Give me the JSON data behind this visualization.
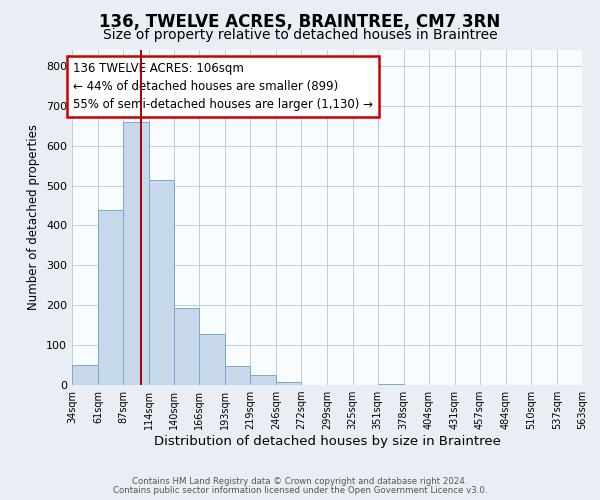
{
  "title": "136, TWELVE ACRES, BRAINTREE, CM7 3RN",
  "subtitle": "Size of property relative to detached houses in Braintree",
  "xlabel": "Distribution of detached houses by size in Braintree",
  "ylabel": "Number of detached properties",
  "bin_edges": [
    34,
    61,
    87,
    114,
    140,
    166,
    193,
    219,
    246,
    272,
    299,
    325,
    351,
    378,
    404,
    431,
    457,
    484,
    510,
    537,
    563
  ],
  "bin_heights": [
    50,
    440,
    660,
    515,
    193,
    127,
    48,
    25,
    8,
    0,
    0,
    0,
    3,
    0,
    0,
    0,
    0,
    0,
    0,
    0
  ],
  "bar_color": "#c8d8eb",
  "bar_edge_color": "#7aaac8",
  "vline_x": 106,
  "vline_color": "#aa0000",
  "annotation_text": "136 TWELVE ACRES: 106sqm\n← 44% of detached houses are smaller (899)\n55% of semi-detached houses are larger (1,130) →",
  "annotation_box_edge": "#cc0000",
  "annotation_fontsize": 8.5,
  "ylim": [
    0,
    840
  ],
  "yticks": [
    0,
    100,
    200,
    300,
    400,
    500,
    600,
    700,
    800
  ],
  "footer_line1": "Contains HM Land Registry data © Crown copyright and database right 2024.",
  "footer_line2": "Contains public sector information licensed under the Open Government Licence v3.0.",
  "bg_color": "#e8eef4",
  "plot_bg_color": "#f8fbff",
  "title_fontsize": 12,
  "subtitle_fontsize": 10,
  "xlabel_fontsize": 9.5,
  "ylabel_fontsize": 8.5,
  "tick_labels": [
    "34sqm",
    "61sqm",
    "87sqm",
    "114sqm",
    "140sqm",
    "166sqm",
    "193sqm",
    "219sqm",
    "246sqm",
    "272sqm",
    "299sqm",
    "325sqm",
    "351sqm",
    "378sqm",
    "404sqm",
    "431sqm",
    "457sqm",
    "484sqm",
    "510sqm",
    "537sqm",
    "563sqm"
  ]
}
